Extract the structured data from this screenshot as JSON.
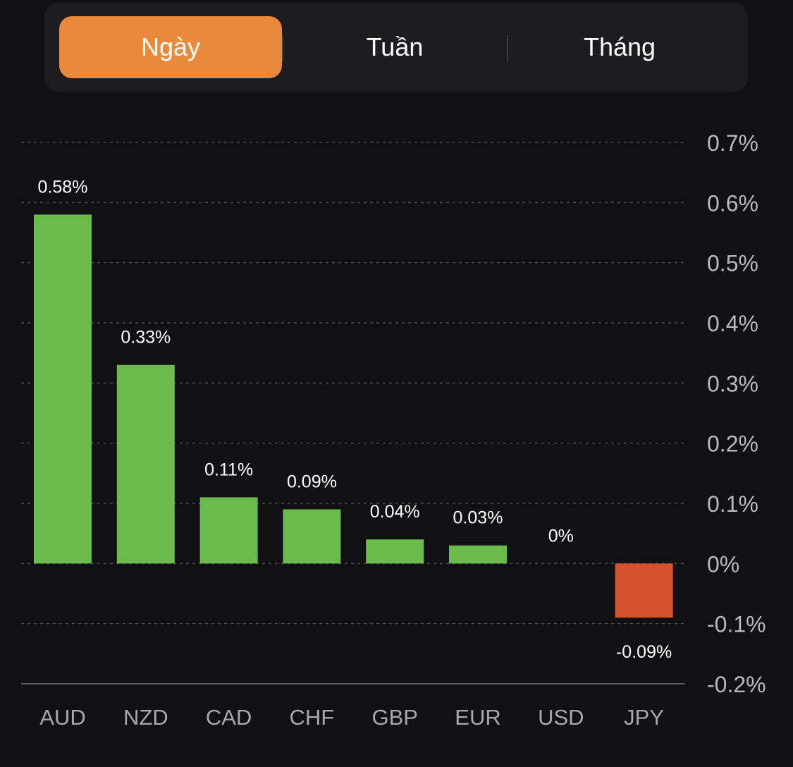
{
  "tabs": [
    {
      "label": "Ngày",
      "active": true
    },
    {
      "label": "Tuần",
      "active": false
    },
    {
      "label": "Tháng",
      "active": false
    }
  ],
  "colors": {
    "accent": "#e8893c",
    "positive": "#6abb4c",
    "negative": "#d4512e",
    "background": "#111113",
    "tab_background": "#1d1d20"
  },
  "chart_data": {
    "type": "bar",
    "categories": [
      "AUD",
      "NZD",
      "CAD",
      "CHF",
      "GBP",
      "EUR",
      "USD",
      "JPY"
    ],
    "values": [
      0.58,
      0.33,
      0.11,
      0.09,
      0.04,
      0.03,
      0,
      -0.09
    ],
    "data_labels": [
      "0.58%",
      "0.33%",
      "0.11%",
      "0.09%",
      "0.04%",
      "0.03%",
      "0%",
      "-0.09%"
    ],
    "y_ticks": [
      0.7,
      0.6,
      0.5,
      0.4,
      0.3,
      0.2,
      0.1,
      0,
      -0.1,
      -0.2
    ],
    "y_tick_labels": [
      "0.7%",
      "0.6%",
      "0.5%",
      "0.4%",
      "0.3%",
      "0.2%",
      "0.1%",
      "0%",
      "-0.1%",
      "-0.2%"
    ],
    "ylim": [
      -0.2,
      0.7
    ],
    "y_axis_position": "right",
    "grid": true,
    "title": "",
    "xlabel": "",
    "ylabel": ""
  }
}
